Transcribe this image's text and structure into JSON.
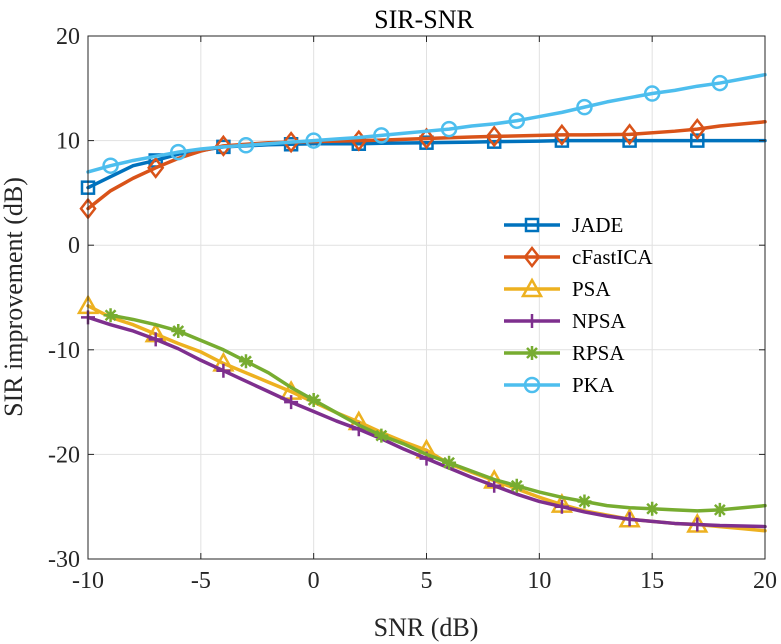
{
  "chart_data": {
    "type": "line",
    "title": "SIR-SNR",
    "xlabel": "SNR (dB)",
    "ylabel": "SIR improvement (dB)",
    "xlim": [
      -10,
      20
    ],
    "ylim": [
      -30,
      20
    ],
    "xticks": [
      -10,
      -5,
      0,
      5,
      10,
      15,
      20
    ],
    "yticks": [
      -30,
      -20,
      -10,
      0,
      10,
      20
    ],
    "xtick_labels": [
      "-10",
      "-5",
      "0",
      "5",
      "10",
      "15",
      "20"
    ],
    "ytick_labels": [
      "-30",
      "-20",
      "-10",
      "0",
      "10",
      "20"
    ],
    "grid": true,
    "legend_position": "right-center",
    "series": [
      {
        "name": "JADE",
        "color": "#0072BD",
        "marker": "square",
        "x": [
          -10,
          -8,
          -7,
          -6,
          -4,
          -2,
          -1,
          0,
          2,
          3,
          5,
          7,
          8,
          10,
          11,
          12,
          14,
          16,
          17,
          18,
          20
        ],
        "y": [
          5.5,
          7.6,
          8.1,
          8.7,
          9.4,
          9.6,
          9.65,
          9.7,
          9.7,
          9.75,
          9.8,
          9.85,
          9.9,
          9.95,
          10.0,
          10.0,
          10.0,
          10.0,
          10.0,
          10.0,
          10.0
        ],
        "marker_x": [
          -10,
          -7,
          -4,
          -1,
          2,
          5,
          8,
          11,
          14,
          17
        ]
      },
      {
        "name": "cFastICA",
        "color": "#D95319",
        "marker": "diamond",
        "x": [
          -10,
          -9,
          -8,
          -7,
          -6,
          -5,
          -4,
          -2,
          -1,
          0,
          2,
          3,
          5,
          7,
          8,
          10,
          11,
          12,
          14,
          16,
          17,
          18,
          20
        ],
        "y": [
          3.5,
          5.2,
          6.4,
          7.4,
          8.3,
          9.0,
          9.5,
          9.8,
          9.85,
          9.9,
          10.0,
          10.05,
          10.2,
          10.35,
          10.4,
          10.5,
          10.55,
          10.55,
          10.6,
          10.9,
          11.1,
          11.4,
          11.8
        ],
        "marker_x": [
          -10,
          -7,
          -4,
          -1,
          2,
          5,
          8,
          11,
          14,
          17
        ]
      },
      {
        "name": "PSA",
        "color": "#EDB120",
        "marker": "triangle",
        "x": [
          -10,
          -9,
          -8,
          -7,
          -6,
          -5,
          -4,
          -3,
          -2,
          -1,
          0,
          1,
          2,
          3,
          4,
          5,
          6,
          7,
          8,
          9,
          10,
          11,
          12,
          13,
          14,
          15,
          16,
          17,
          18,
          19,
          20
        ],
        "y": [
          -5.8,
          -6.9,
          -7.6,
          -8.5,
          -9.4,
          -10.2,
          -11.3,
          -12.2,
          -13.1,
          -14.0,
          -15.0,
          -16.0,
          -16.9,
          -17.9,
          -18.8,
          -19.6,
          -20.9,
          -21.7,
          -22.5,
          -23.3,
          -24.1,
          -24.8,
          -25.4,
          -25.8,
          -26.2,
          -26.4,
          -26.6,
          -26.7,
          -26.9,
          -27.1,
          -27.3
        ],
        "marker_x": [
          -10,
          -7,
          -4,
          -1,
          2,
          5,
          8,
          11,
          14,
          17
        ]
      },
      {
        "name": "NPSA",
        "color": "#7E2F8E",
        "marker": "plus",
        "x": [
          -10,
          -9,
          -8,
          -7,
          -6,
          -5,
          -4,
          -3,
          -2,
          -1,
          0,
          1,
          2,
          3,
          4,
          5,
          6,
          7,
          8,
          9,
          10,
          11,
          12,
          13,
          14,
          15,
          16,
          17,
          18,
          19,
          20
        ],
        "y": [
          -6.9,
          -7.6,
          -8.2,
          -9.0,
          -9.9,
          -11.0,
          -12.0,
          -13.0,
          -14.0,
          -15.0,
          -15.9,
          -16.8,
          -17.6,
          -18.5,
          -19.5,
          -20.4,
          -21.3,
          -22.2,
          -23.0,
          -23.8,
          -24.5,
          -25.0,
          -25.5,
          -25.9,
          -26.2,
          -26.4,
          -26.6,
          -26.7,
          -26.8,
          -26.85,
          -26.9
        ],
        "marker_x": [
          -10,
          -7,
          -4,
          -1,
          2,
          5,
          8,
          11,
          14,
          17
        ]
      },
      {
        "name": "RPSA",
        "color": "#77AC30",
        "marker": "asterisk",
        "x": [
          -9,
          -8,
          -7,
          -6,
          -5,
          -4,
          -3,
          -2,
          -1,
          0,
          1,
          2,
          3,
          4,
          5,
          6,
          7,
          8,
          9,
          10,
          11,
          12,
          13,
          14,
          15,
          16,
          17,
          18,
          19,
          20
        ],
        "y": [
          -6.7,
          -7.1,
          -7.6,
          -8.2,
          -9.1,
          -10.0,
          -11.1,
          -12.2,
          -13.6,
          -14.8,
          -16.0,
          -17.2,
          -18.2,
          -19.0,
          -20.0,
          -20.8,
          -21.6,
          -22.4,
          -23.0,
          -23.6,
          -24.1,
          -24.5,
          -24.9,
          -25.1,
          -25.2,
          -25.3,
          -25.4,
          -25.3,
          -25.1,
          -24.9
        ],
        "marker_x": [
          -9,
          -6,
          -3,
          0,
          3,
          6,
          9,
          12,
          15,
          18
        ]
      },
      {
        "name": "PKA",
        "color": "#4DBEEE",
        "marker": "circle",
        "x": [
          -10,
          -9,
          -8,
          -7,
          -6,
          -5,
          -4,
          -3,
          -2,
          -1,
          0,
          1,
          2,
          3,
          4,
          5,
          6,
          7,
          8,
          9,
          10,
          11,
          12,
          13,
          14,
          15,
          16,
          17,
          18,
          19,
          20
        ],
        "y": [
          7.0,
          7.6,
          8.1,
          8.5,
          8.9,
          9.2,
          9.4,
          9.55,
          9.7,
          9.85,
          10.0,
          10.15,
          10.3,
          10.5,
          10.7,
          10.9,
          11.1,
          11.4,
          11.6,
          11.9,
          12.3,
          12.7,
          13.2,
          13.7,
          14.1,
          14.5,
          14.8,
          15.2,
          15.5,
          15.9,
          16.3
        ],
        "marker_x": [
          -9,
          -6,
          -3,
          0,
          3,
          6,
          9,
          12,
          15,
          18
        ]
      }
    ]
  }
}
